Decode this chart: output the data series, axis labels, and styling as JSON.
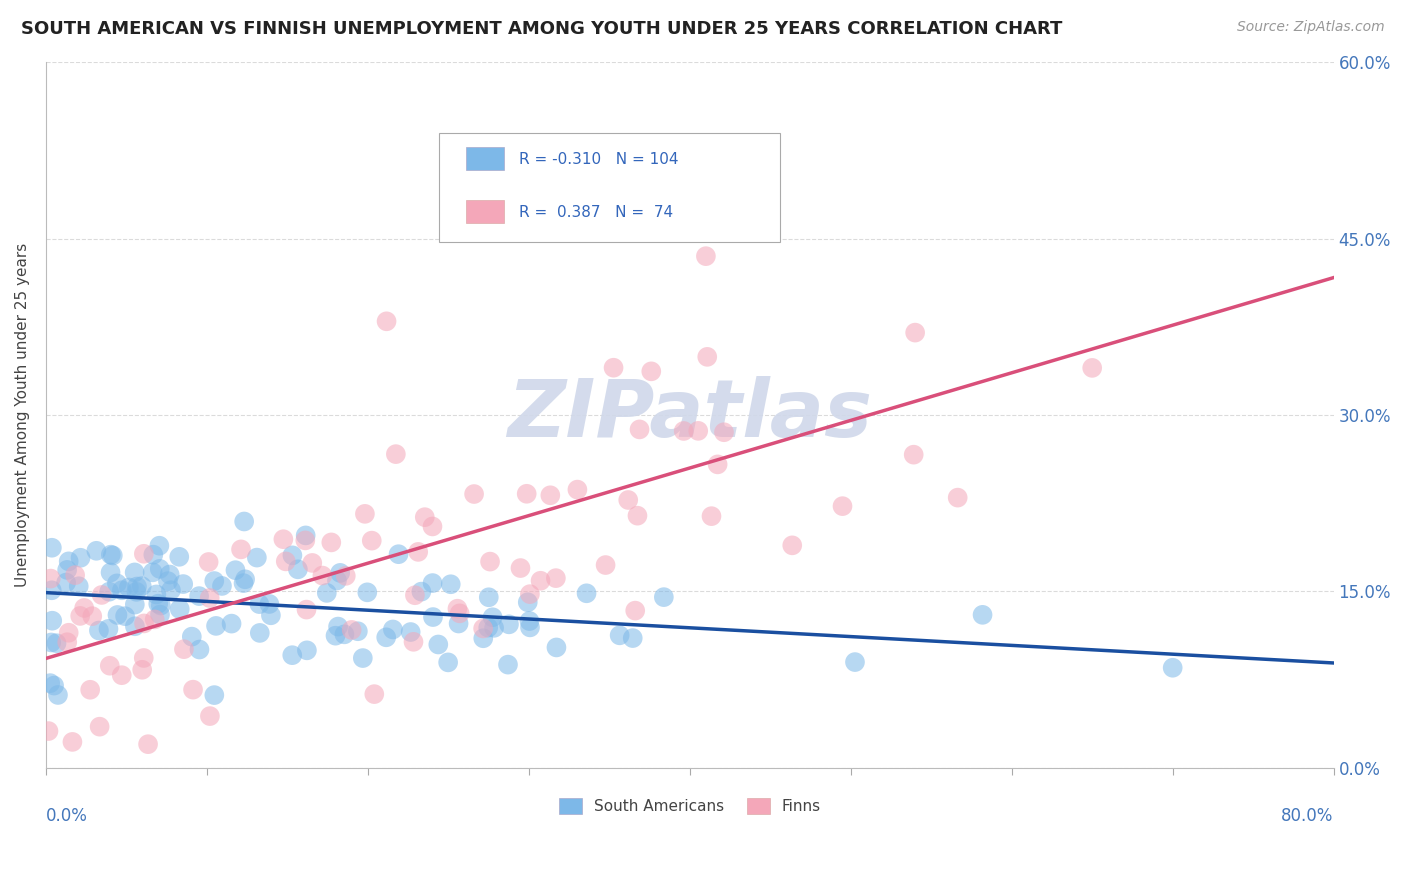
{
  "title": "SOUTH AMERICAN VS FINNISH UNEMPLOYMENT AMONG YOUTH UNDER 25 YEARS CORRELATION CHART",
  "source": "Source: ZipAtlas.com",
  "ylabel": "Unemployment Among Youth under 25 years",
  "r_south": -0.31,
  "n_south": 104,
  "r_finn": 0.387,
  "n_finn": 74,
  "xlim": [
    0.0,
    0.8
  ],
  "ylim": [
    0.0,
    0.6
  ],
  "right_yticks": [
    0.0,
    0.15,
    0.3,
    0.45,
    0.6
  ],
  "right_yticklabels": [
    "0.0%",
    "15.0%",
    "30.0%",
    "45.0%",
    "60.0%"
  ],
  "south_color": "#7db8e8",
  "finn_color": "#f4a7b9",
  "south_line_color": "#1a4fa0",
  "finn_line_color": "#d94f7a",
  "background_color": "#ffffff",
  "grid_color": "#cccccc",
  "watermark_color": "#d0d8ea"
}
